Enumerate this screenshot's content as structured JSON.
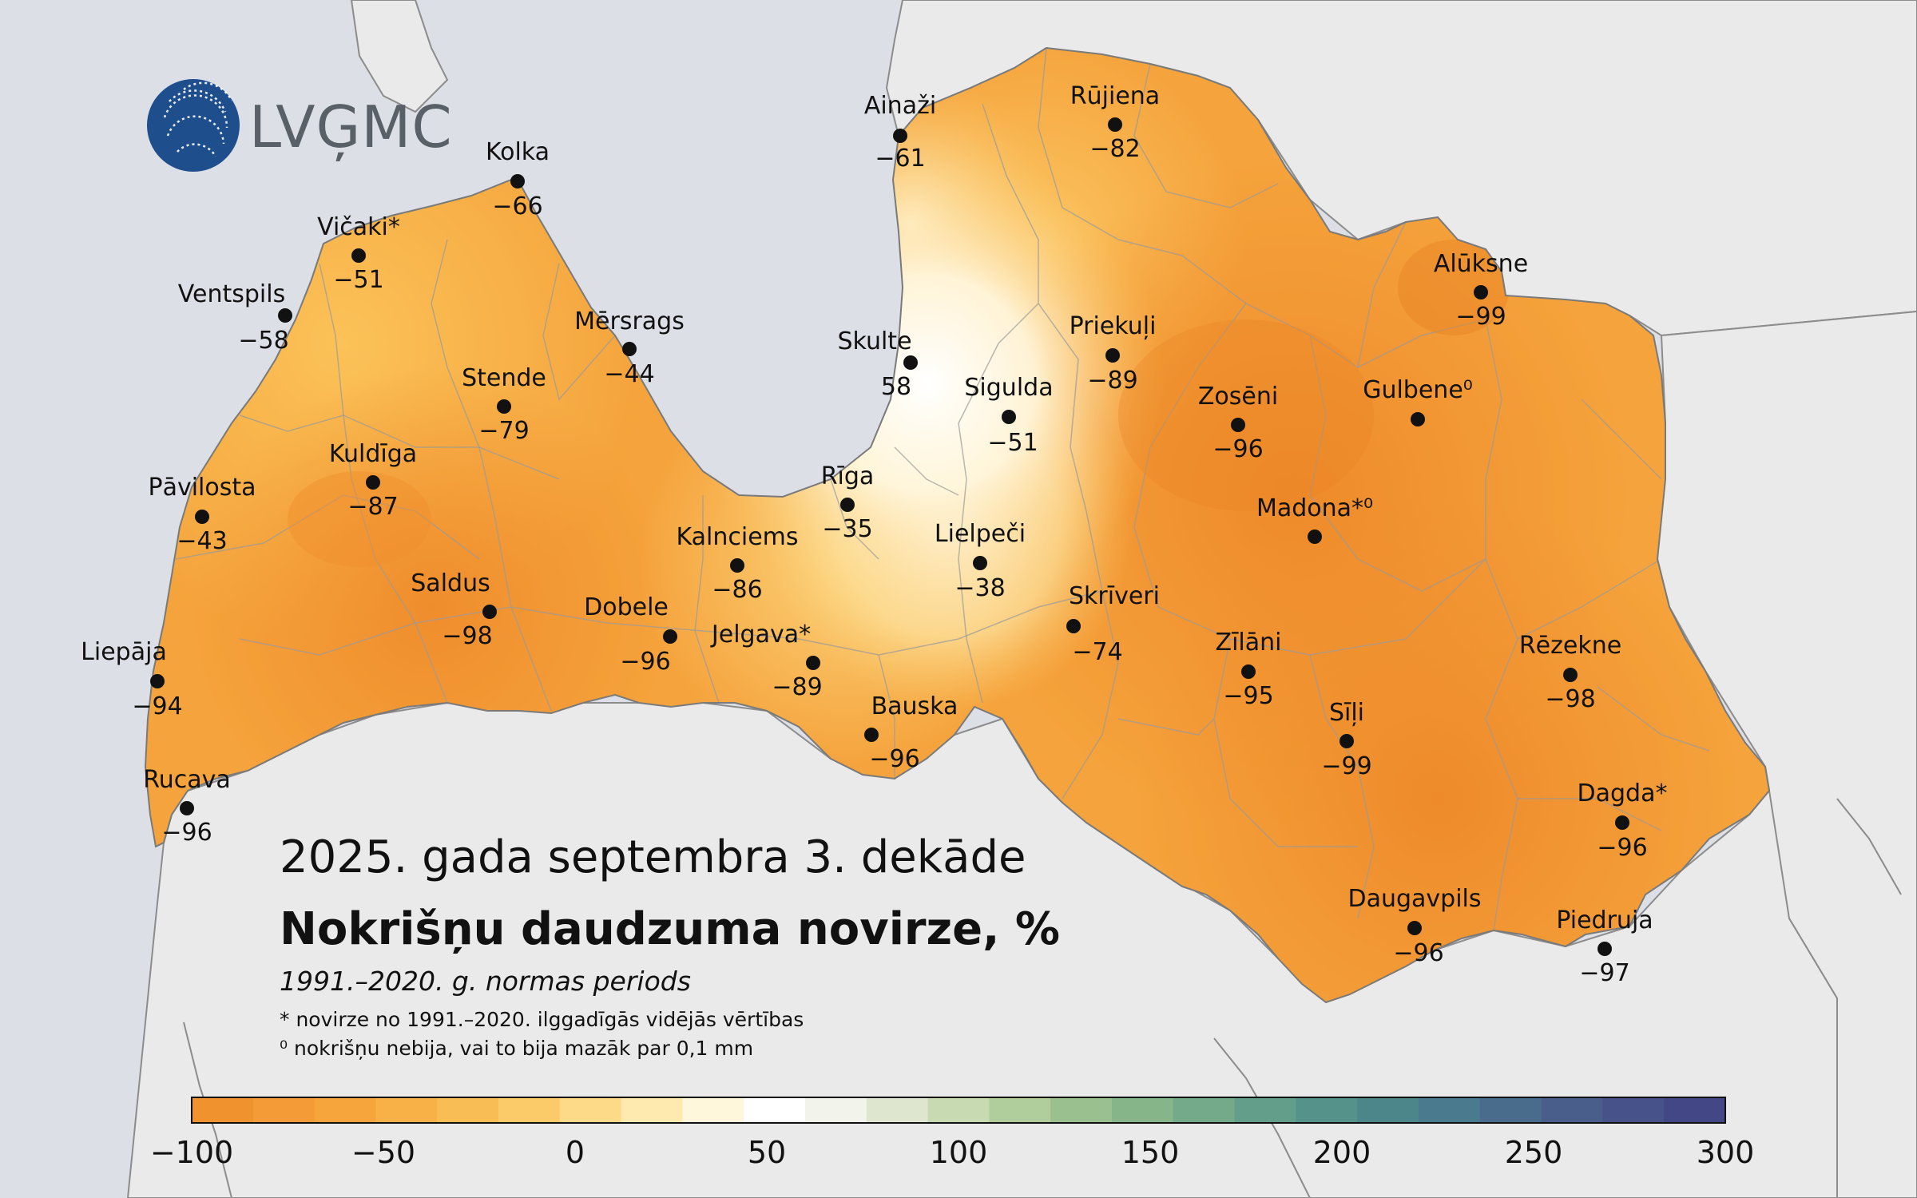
{
  "logo": {
    "text": "LVĢMC"
  },
  "titles": {
    "period": "2025. gada septembra 3. dekāde",
    "main": "Nokrišņu daudzuma novirze, %",
    "normal": "1991.–2020. g. normas periods",
    "note1": "* novirze no 1991.–2020. ilggadīgās vidējās vērtības",
    "note2": "⁰ nokrišņu nebija, vai to bija mazāk par 0,1 mm"
  },
  "legend": {
    "ticks": [
      "−100",
      "−50",
      "0",
      "50",
      "100",
      "150",
      "200",
      "250",
      "300"
    ],
    "min": -100,
    "max": 300,
    "colors": [
      "#f0922e",
      "#f49a36",
      "#f6a53d",
      "#f8b147",
      "#f9bd55",
      "#fbcb6a",
      "#fdda88",
      "#feeaaf",
      "#fff7dc",
      "#ffffff",
      "#f2f3ea",
      "#dfe6cf",
      "#c7dab2",
      "#b0cd9c",
      "#99c08e",
      "#86b58a",
      "#74aa89",
      "#629e89",
      "#54928a",
      "#4c868b",
      "#4a7a8d",
      "#4a6c8c",
      "#4a5e8b",
      "#48528a",
      "#444785"
    ],
    "accent_orange": "#f39a35"
  },
  "stations": [
    {
      "id": "ainazi",
      "name": "Ainaži",
      "value": "−61"
    },
    {
      "id": "rujiena",
      "name": "Rūjiena",
      "value": "−82"
    },
    {
      "id": "kolka",
      "name": "Kolka",
      "value": "−66"
    },
    {
      "id": "vicaki",
      "name": "Vičaki*",
      "value": "−51"
    },
    {
      "id": "ventspils",
      "name": "Ventspils",
      "value": "−58"
    },
    {
      "id": "mersrags",
      "name": "Mērsrags",
      "value": "−44"
    },
    {
      "id": "skulte",
      "name": "Skulte",
      "value": "58"
    },
    {
      "id": "sigulda",
      "name": "Sigulda",
      "value": "−51"
    },
    {
      "id": "priekuli",
      "name": "Priekuļi",
      "value": "−89"
    },
    {
      "id": "aluksne",
      "name": "Alūksne",
      "value": "−99"
    },
    {
      "id": "gulbene",
      "name": "Gulbene⁰",
      "value": ""
    },
    {
      "id": "zoseni",
      "name": "Zosēni",
      "value": "−96"
    },
    {
      "id": "stende",
      "name": "Stende",
      "value": "−79"
    },
    {
      "id": "kuldiga",
      "name": "Kuldīga",
      "value": "−87"
    },
    {
      "id": "pavilosta",
      "name": "Pāvilosta",
      "value": "−43"
    },
    {
      "id": "riga",
      "name": "Rīga",
      "value": "−35"
    },
    {
      "id": "madona",
      "name": "Madona*⁰",
      "value": ""
    },
    {
      "id": "kalnciems",
      "name": "Kalnciems",
      "value": "−86"
    },
    {
      "id": "lielpeci",
      "name": "Lielpeči",
      "value": "−38"
    },
    {
      "id": "saldus",
      "name": "Saldus",
      "value": "−98"
    },
    {
      "id": "dobele",
      "name": "Dobele",
      "value": "−96"
    },
    {
      "id": "jelgava",
      "name": "Jelgava*",
      "value": "−89"
    },
    {
      "id": "skriveri",
      "name": "Skrīveri",
      "value": "−74"
    },
    {
      "id": "zilani",
      "name": "Zīlāni",
      "value": "−95"
    },
    {
      "id": "rezekne",
      "name": "Rēzekne",
      "value": "−98"
    },
    {
      "id": "liepaja",
      "name": "Liepāja",
      "value": "−94"
    },
    {
      "id": "bauska",
      "name": "Bauska",
      "value": "−96"
    },
    {
      "id": "sili",
      "name": "Sīļi",
      "value": "−99"
    },
    {
      "id": "rucava",
      "name": "Rucava",
      "value": "−96"
    },
    {
      "id": "dagda",
      "name": "Dagda*",
      "value": "−96"
    },
    {
      "id": "daugavpils",
      "name": "Daugavpils",
      "value": "−96"
    },
    {
      "id": "piedruja",
      "name": "Piedruja",
      "value": "−97"
    }
  ]
}
